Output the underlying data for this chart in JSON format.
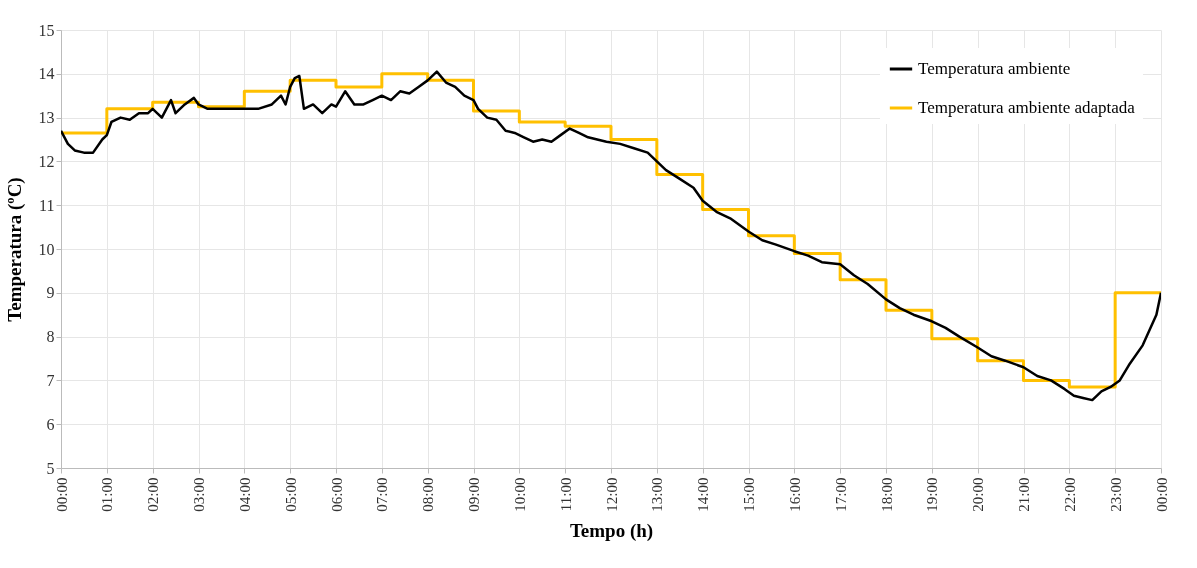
{
  "chart_data": {
    "type": "line",
    "xlabel": "Tempo (h)",
    "ylabel": "Temperatura (ºC)",
    "xlim": [
      0,
      24
    ],
    "ylim": [
      5,
      15
    ],
    "yticks": [
      5,
      6,
      7,
      8,
      9,
      10,
      11,
      12,
      13,
      14,
      15
    ],
    "xticks": [
      {
        "value": 0,
        "label": "00:00"
      },
      {
        "value": 1,
        "label": "01:00"
      },
      {
        "value": 2,
        "label": "02:00"
      },
      {
        "value": 3,
        "label": "03:00"
      },
      {
        "value": 4,
        "label": "04:00"
      },
      {
        "value": 5,
        "label": "05:00"
      },
      {
        "value": 6,
        "label": "06:00"
      },
      {
        "value": 7,
        "label": "07:00"
      },
      {
        "value": 8,
        "label": "08:00"
      },
      {
        "value": 9,
        "label": "09:00"
      },
      {
        "value": 10,
        "label": "10:00"
      },
      {
        "value": 11,
        "label": "11:00"
      },
      {
        "value": 12,
        "label": "12:00"
      },
      {
        "value": 13,
        "label": "13:00"
      },
      {
        "value": 14,
        "label": "14:00"
      },
      {
        "value": 15,
        "label": "15:00"
      },
      {
        "value": 16,
        "label": "16:00"
      },
      {
        "value": 17,
        "label": "17:00"
      },
      {
        "value": 18,
        "label": "18:00"
      },
      {
        "value": 19,
        "label": "19:00"
      },
      {
        "value": 20,
        "label": "20:00"
      },
      {
        "value": 21,
        "label": "21:00"
      },
      {
        "value": 22,
        "label": "22:00"
      },
      {
        "value": 23,
        "label": "23:00"
      },
      {
        "value": 24,
        "label": "00:00"
      }
    ],
    "grid": true,
    "legend": "top right",
    "marker": "none",
    "line_style": "solid",
    "series": [
      {
        "name": "Temperatura ambiente",
        "color": "#000000",
        "type": "line",
        "x": [
          0,
          0.15,
          0.3,
          0.5,
          0.7,
          0.9,
          1.0,
          1.1,
          1.3,
          1.5,
          1.7,
          1.9,
          2.0,
          2.2,
          2.4,
          2.5,
          2.7,
          2.9,
          3.0,
          3.2,
          3.5,
          3.8,
          4.0,
          4.3,
          4.6,
          4.8,
          4.9,
          5.0,
          5.1,
          5.2,
          5.3,
          5.5,
          5.7,
          5.9,
          6.0,
          6.2,
          6.4,
          6.6,
          6.8,
          7.0,
          7.2,
          7.4,
          7.6,
          7.8,
          8.0,
          8.2,
          8.4,
          8.6,
          8.8,
          9.0,
          9.1,
          9.3,
          9.5,
          9.7,
          9.9,
          10.1,
          10.3,
          10.5,
          10.7,
          10.9,
          11.1,
          11.3,
          11.5,
          11.7,
          11.9,
          12.2,
          12.5,
          12.8,
          13.0,
          13.2,
          13.5,
          13.8,
          14.0,
          14.3,
          14.6,
          15.0,
          15.3,
          15.6,
          16.0,
          16.3,
          16.6,
          17.0,
          17.3,
          17.6,
          18.0,
          18.3,
          18.6,
          19.0,
          19.3,
          19.6,
          20.0,
          20.3,
          20.6,
          21.0,
          21.3,
          21.6,
          21.9,
          22.1,
          22.3,
          22.5,
          22.7,
          22.9,
          23.1,
          23.3,
          23.6,
          23.9,
          24.0
        ],
        "values": [
          12.7,
          12.4,
          12.25,
          12.2,
          12.2,
          12.5,
          12.6,
          12.9,
          13.0,
          12.95,
          13.1,
          13.1,
          13.2,
          13.0,
          13.4,
          13.1,
          13.3,
          13.45,
          13.3,
          13.2,
          13.2,
          13.2,
          13.2,
          13.2,
          13.3,
          13.5,
          13.3,
          13.7,
          13.9,
          13.95,
          13.2,
          13.3,
          13.1,
          13.3,
          13.25,
          13.6,
          13.3,
          13.3,
          13.4,
          13.5,
          13.4,
          13.6,
          13.55,
          13.7,
          13.85,
          14.05,
          13.8,
          13.7,
          13.5,
          13.4,
          13.2,
          13.0,
          12.95,
          12.7,
          12.65,
          12.55,
          12.45,
          12.5,
          12.45,
          12.6,
          12.75,
          12.65,
          12.55,
          12.5,
          12.45,
          12.4,
          12.3,
          12.2,
          12.0,
          11.8,
          11.6,
          11.4,
          11.1,
          10.85,
          10.7,
          10.4,
          10.2,
          10.1,
          9.95,
          9.85,
          9.7,
          9.65,
          9.4,
          9.2,
          8.85,
          8.65,
          8.5,
          8.35,
          8.2,
          8.0,
          7.75,
          7.55,
          7.45,
          7.3,
          7.1,
          7.0,
          6.8,
          6.65,
          6.6,
          6.55,
          6.75,
          6.85,
          7.0,
          7.35,
          7.8,
          8.5,
          9.0
        ]
      },
      {
        "name": "Temperatura ambiente adaptada",
        "color": "#ffc000",
        "type": "step",
        "x": [
          0,
          1,
          2,
          3,
          4,
          5,
          6,
          7,
          8,
          9,
          10,
          11,
          12,
          13,
          14,
          15,
          16,
          17,
          18,
          19,
          20,
          21,
          22,
          23,
          24
        ],
        "values": [
          12.65,
          13.2,
          13.35,
          13.25,
          13.6,
          13.85,
          13.7,
          14.0,
          13.85,
          13.15,
          12.9,
          12.8,
          12.5,
          11.7,
          10.9,
          10.3,
          9.9,
          9.3,
          8.6,
          7.95,
          7.45,
          7.0,
          6.85,
          9.0,
          9.0
        ]
      }
    ]
  }
}
